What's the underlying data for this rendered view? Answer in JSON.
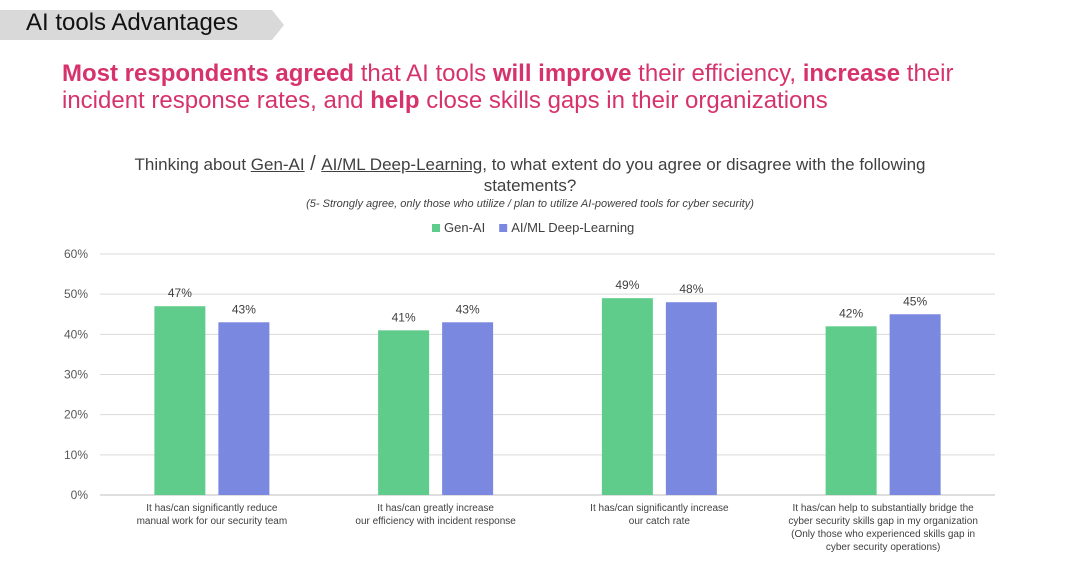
{
  "section": {
    "label": "AI tools Advantages"
  },
  "headline": {
    "b1": "Most respondents agreed",
    "t1": " that AI tools ",
    "b2": "will improve",
    "t2": " their efficiency, ",
    "b3": "increase",
    "t3": " their incident response rates, and ",
    "b4": "help",
    "t4": " close skills gaps in their organizations"
  },
  "question": {
    "p1": "Thinking about ",
    "u1": "Gen-AI",
    "slash": " / ",
    "u2": "AI/ML Deep-Learning",
    "p2": ", to what extent do you agree or disagree with the following statements?",
    "sub": "(5- Strongly agree, only those who utilize / plan to utilize AI-powered tools for cyber security)"
  },
  "colors": {
    "gen_ai": "#5fcc8b",
    "ai_ml": "#7b88e0",
    "grid": "#d9d9d9",
    "accent": "#d6336c"
  },
  "chart_data": {
    "type": "bar",
    "categories": [
      [
        "It has/can significantly reduce",
        "manual work for our security team"
      ],
      [
        "It has/can greatly increase",
        "our efficiency with incident response"
      ],
      [
        "It has/can significantly increase",
        "our catch rate"
      ],
      [
        "It has/can help to substantially bridge the",
        "cyber security skills gap in my organization",
        "(Only those who experienced skills gap in",
        "cyber security operations)"
      ]
    ],
    "series": [
      {
        "name": "Gen-AI",
        "values": [
          47,
          41,
          49,
          42
        ],
        "labels": [
          "47%",
          "41%",
          "49%",
          "42%"
        ]
      },
      {
        "name": "AI/ML Deep-Learning",
        "values": [
          43,
          43,
          48,
          45
        ],
        "labels": [
          "43%",
          "43%",
          "48%",
          "45%"
        ]
      }
    ],
    "ylim": [
      0,
      60
    ],
    "yticks": [
      "0%",
      "10%",
      "20%",
      "30%",
      "40%",
      "50%",
      "60%"
    ],
    "grid": true,
    "legend_position": "top-center"
  }
}
